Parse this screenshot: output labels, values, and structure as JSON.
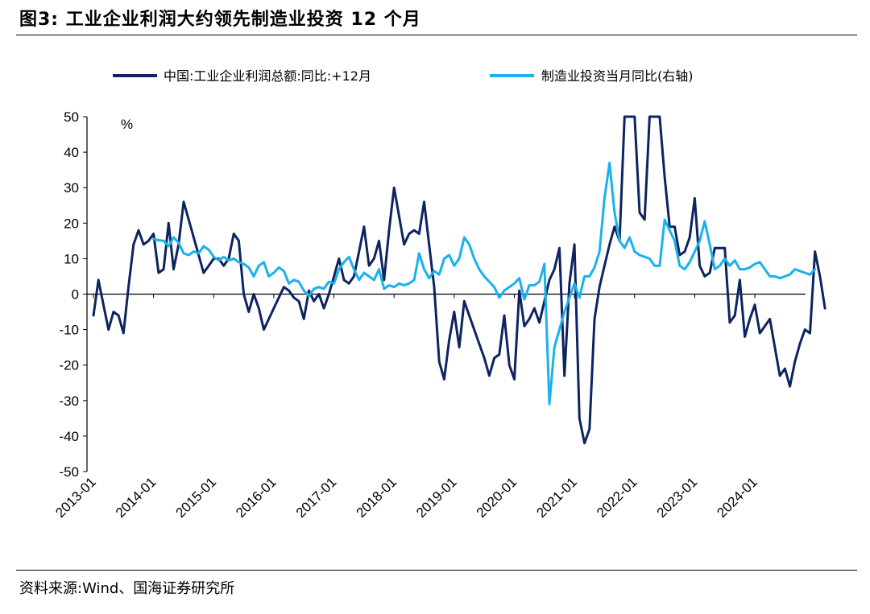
{
  "figure": {
    "title": "图3:  工业企业利润大约领先制造业投资 12 个月",
    "source": "资料来源:Wind、国海证券研究所"
  },
  "chart_data": {
    "type": "line",
    "title": "工业企业利润大约领先制造业投资 12 个月",
    "xlabel": "",
    "ylabel": "%",
    "ylim": [
      -50,
      50
    ],
    "yticks": [
      -50,
      -40,
      -30,
      -20,
      -10,
      0,
      10,
      20,
      30,
      40,
      50
    ],
    "xticks": [
      "2013-01",
      "2014-01",
      "2015-01",
      "2016-01",
      "2017-01",
      "2018-01",
      "2019-01",
      "2020-01",
      "2021-01",
      "2022-01",
      "2023-01",
      "2024-01"
    ],
    "x_start": "2013-01",
    "legend_position": "top",
    "series": [
      {
        "name": "中国:工业企业利润总额:同比:+12月",
        "color": "#0d2461",
        "start": "2013-01",
        "values": [
          -6,
          4,
          -3,
          -10,
          -5,
          -6,
          -11,
          2,
          14,
          18,
          14,
          15,
          17,
          6,
          7,
          20,
          7,
          14,
          26,
          21,
          16,
          11,
          6,
          8,
          10,
          10,
          8,
          10,
          17,
          15,
          0,
          -5,
          0,
          -4,
          -10,
          -7,
          -4,
          -1,
          2,
          1,
          -1,
          -2,
          -7,
          1,
          -2,
          0,
          -4,
          0,
          5,
          10,
          4,
          3,
          5,
          12,
          19,
          8,
          10,
          15,
          4,
          18,
          30,
          22,
          14,
          17,
          18,
          17,
          26,
          14,
          2,
          -19,
          -24,
          -13,
          -5,
          -15,
          -2,
          -6,
          -10,
          -14,
          -18,
          -23,
          -18,
          -17,
          -6,
          -20,
          -24,
          1,
          -9,
          -7,
          -4,
          -8,
          -2,
          4,
          7,
          13,
          -23,
          3,
          14,
          -35,
          -42,
          -38,
          -7,
          2,
          8,
          14,
          19,
          15,
          50,
          50,
          50,
          23,
          21,
          50,
          50,
          50,
          33,
          19,
          19,
          11,
          12,
          16,
          27,
          8,
          5,
          6,
          13,
          13,
          13,
          -8,
          -6,
          4,
          -12,
          -7,
          -3,
          -11,
          -9,
          -7,
          -15,
          -23,
          -21,
          -26,
          -19,
          -14,
          -10,
          -11,
          12,
          5,
          -4
        ]
      },
      {
        "name": "制造业投资当月同比(右轴)",
        "color": "#1ab1ec",
        "start": "2014-01",
        "values": [
          15.5,
          15.2,
          15.0,
          13.5,
          16.0,
          14.5,
          11.5,
          11.0,
          12.0,
          11.5,
          13.5,
          12.5,
          10.5,
          9.5,
          10.5,
          9.5,
          10.0,
          9.0,
          8.5,
          7.5,
          5.0,
          8.0,
          9.0,
          5.0,
          6.0,
          7.5,
          6.5,
          3.0,
          4.0,
          3.5,
          1.0,
          -0.5,
          1.5,
          2.0,
          1.5,
          3.5,
          3.0,
          7.0,
          9.0,
          10.5,
          7.0,
          4.0,
          6.0,
          5.0,
          4.0,
          7.0,
          1.5,
          2.5,
          2.0,
          3.0,
          2.5,
          3.0,
          4.0,
          11.5,
          7.0,
          4.5,
          6.5,
          5.5,
          10.0,
          11.0,
          8.0,
          10.0,
          16.0,
          14.0,
          10.0,
          7.0,
          5.0,
          3.5,
          2.0,
          -1.0,
          1.0,
          2.0,
          3.0,
          4.5,
          -1.5,
          2.5,
          2.5,
          3.5,
          8.5,
          -31.0,
          -15.0,
          -10.0,
          -5.0,
          -1.0,
          3.0,
          -1.0,
          5.0,
          5.0,
          7.5,
          12.0,
          27.0,
          37.0,
          23.0,
          15.0,
          13.0,
          16.0,
          12.0,
          11.0,
          10.5,
          10.0,
          8.0,
          8.0,
          21.0,
          18.0,
          15.0,
          8.0,
          7.0,
          9.0,
          12.0,
          15.0,
          20.5,
          14.0,
          7.0,
          8.0,
          10.0,
          8.0,
          9.5,
          7.0,
          7.0,
          7.5,
          8.5,
          9.0,
          7.0,
          5.0,
          5.0,
          4.5,
          5.0,
          5.5,
          7.0,
          6.5,
          6.0,
          5.5,
          7.0
        ]
      }
    ]
  }
}
